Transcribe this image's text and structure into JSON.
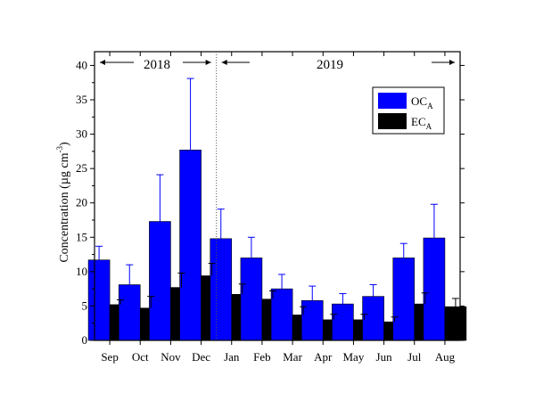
{
  "chart_data": {
    "type": "bar",
    "categories": [
      "Sep",
      "Oct",
      "Nov",
      "Dec",
      "Jan",
      "Feb",
      "Mar",
      "Apr",
      "May",
      "Jun",
      "Jul",
      "Aug"
    ],
    "series": [
      {
        "name": "OC",
        "name_subscript": "A",
        "color": "#0000ff",
        "values": [
          11.7,
          8.1,
          17.3,
          27.7,
          14.8,
          12.0,
          7.5,
          5.8,
          5.3,
          6.4,
          12.0,
          14.9
        ],
        "errors": [
          2.0,
          2.9,
          6.8,
          10.4,
          4.3,
          3.0,
          2.1,
          2.1,
          1.5,
          1.7,
          2.1,
          4.9
        ]
      },
      {
        "name": "EC",
        "name_subscript": "A",
        "color": "#000000",
        "values": [
          5.2,
          4.7,
          7.7,
          9.4,
          6.7,
          6.0,
          3.7,
          3.0,
          3.0,
          2.7,
          5.3,
          4.9
        ],
        "errors": [
          0.7,
          1.7,
          2.1,
          1.8,
          1.5,
          1.2,
          1.2,
          0.8,
          0.8,
          0.7,
          1.6,
          1.2
        ]
      }
    ],
    "ylabel_parts": {
      "main": "Concentration (µg cm",
      "sup": "-3",
      "end": ")"
    },
    "xlabel": "",
    "ylim": [
      0,
      42
    ],
    "yticks": [
      "0",
      "5",
      "10",
      "15",
      "20",
      "25",
      "30",
      "35",
      "40"
    ],
    "grid": false,
    "legend_position": "top-right",
    "year_labels": [
      "2018",
      "2019"
    ],
    "year_divider_after_category": "Dec"
  }
}
